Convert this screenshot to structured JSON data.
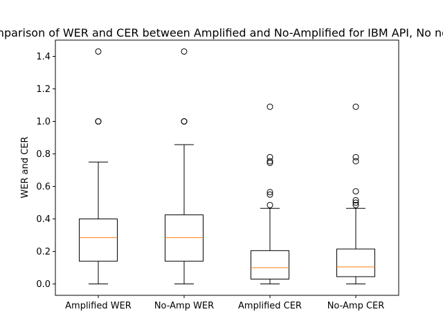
{
  "chart_data": {
    "type": "boxplot",
    "title": "Comparison of WER and CER between Amplified and No-Amplified for IBM API, No noise",
    "xlabel": "",
    "ylabel": "WER and CER",
    "ylim": [
      -0.07,
      1.5
    ],
    "yticks": [
      0.0,
      0.2,
      0.4,
      0.6,
      0.8,
      1.0,
      1.2,
      1.4
    ],
    "ytick_labels": [
      "0.0",
      "0.2",
      "0.4",
      "0.6",
      "0.8",
      "1.0",
      "1.2",
      "1.4"
    ],
    "grid": false,
    "categories": [
      "Amplified WER",
      "No-Amp WER",
      "Amplified CER",
      "No-Amp CER"
    ],
    "boxes": [
      {
        "whisker_low": 0.0,
        "q1": 0.14,
        "median": 0.285,
        "q3": 0.4,
        "whisker_high": 0.75,
        "outliers": [
          1.0,
          1.0,
          1.0,
          1.43
        ]
      },
      {
        "whisker_low": 0.0,
        "q1": 0.14,
        "median": 0.285,
        "q3": 0.425,
        "whisker_high": 0.857,
        "outliers": [
          1.0,
          1.0,
          1.0,
          1.43
        ]
      },
      {
        "whisker_low": 0.0,
        "q1": 0.03,
        "median": 0.1,
        "q3": 0.205,
        "whisker_high": 0.465,
        "outliers": [
          0.485,
          0.55,
          0.565,
          0.745,
          0.755,
          0.78,
          1.09
        ]
      },
      {
        "whisker_low": 0.0,
        "q1": 0.045,
        "median": 0.105,
        "q3": 0.215,
        "whisker_high": 0.465,
        "outliers": [
          0.485,
          0.5,
          0.515,
          0.57,
          0.755,
          0.78,
          1.09
        ]
      }
    ],
    "colors": {
      "box": "#000000",
      "median": "#ff7f0e",
      "outlier": "#000000",
      "background": "#ffffff"
    }
  }
}
